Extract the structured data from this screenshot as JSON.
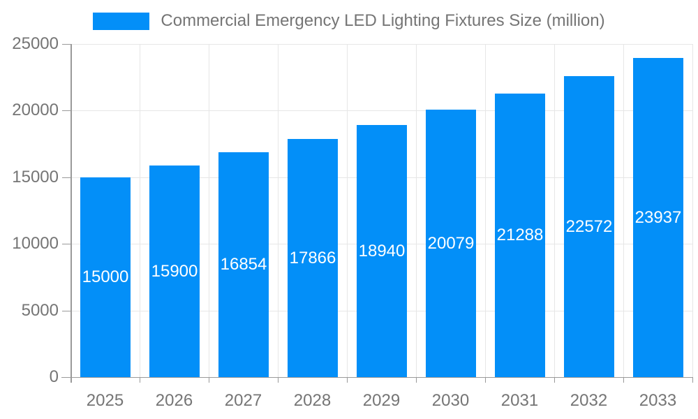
{
  "legend": {
    "label": "Commercial Emergency LED Lighting Fixtures Size (million)"
  },
  "chart_data": {
    "type": "bar",
    "title": "Commercial Emergency LED Lighting Fixtures Size (million)",
    "series": [
      {
        "name": "Commercial Emergency LED Lighting Fixtures Size (million)",
        "values": [
          15000,
          15900,
          16854,
          17866,
          18940,
          20079,
          21288,
          22572,
          23937
        ]
      }
    ],
    "categories": [
      "2025",
      "2026",
      "2027",
      "2028",
      "2029",
      "2030",
      "2031",
      "2032",
      "2033"
    ],
    "value_labels": [
      "15000",
      "15900",
      "16854",
      "17866",
      "18940",
      "20079",
      "21288",
      "22572",
      "23937"
    ],
    "xlabel": "",
    "ylabel": "",
    "ylim": [
      0,
      25000
    ],
    "y_ticks": [
      0,
      5000,
      10000,
      15000,
      20000,
      25000
    ],
    "grid": true,
    "legend_position": "top",
    "colors": {
      "bar": "#038ff8",
      "value_label": "#ffffff",
      "axis_text": "#757575",
      "axis_line": "#999999",
      "gridline": "#e6e6e6",
      "background": "#ffffff"
    }
  }
}
